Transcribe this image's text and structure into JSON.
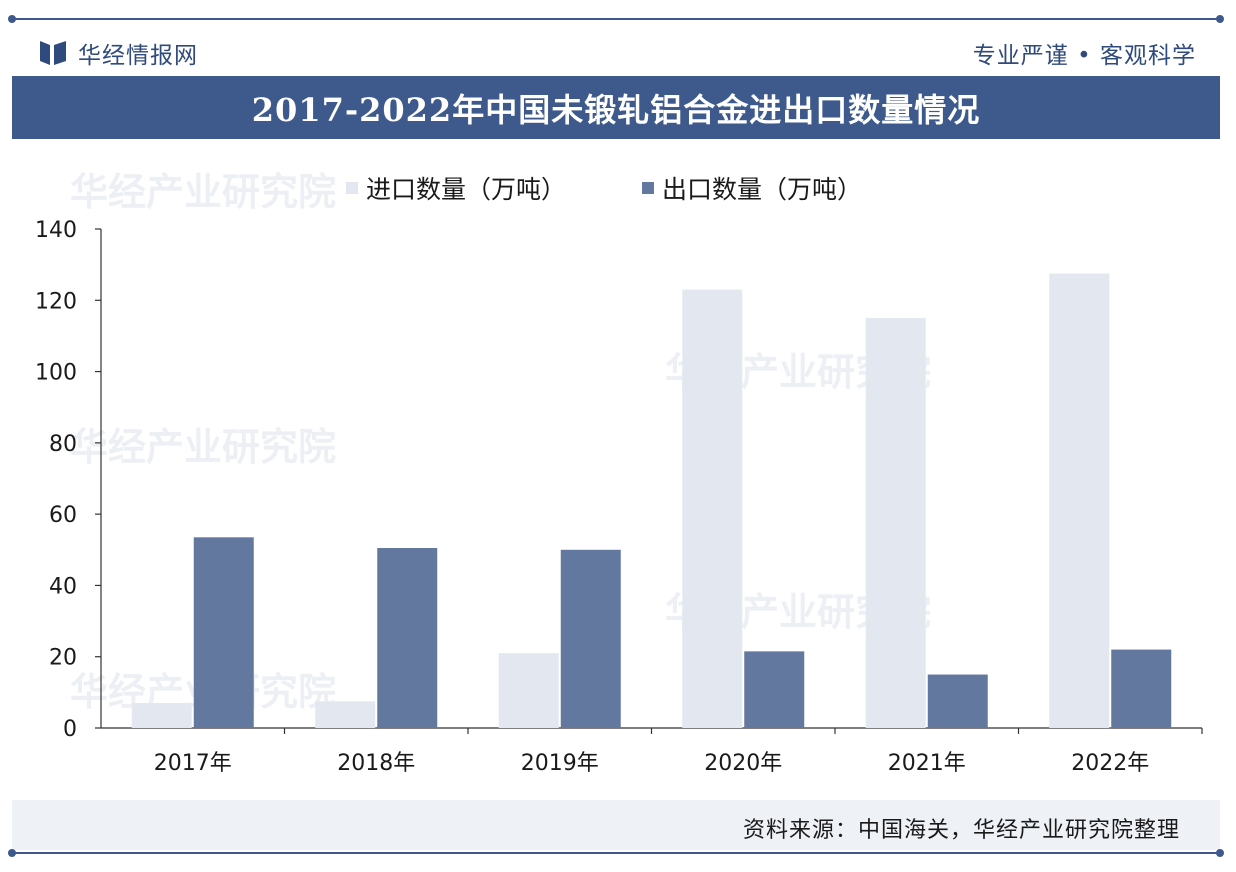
{
  "header": {
    "brand": "华经情报网",
    "motto": "专业严谨 • 客观科学"
  },
  "title": "2017-2022年中国未锻轧铝合金进出口数量情况",
  "footer": {
    "source": "资料来源：中国海关，华经产业研究院整理"
  },
  "watermark": {
    "text": "华经产业研究院"
  },
  "colors": {
    "accent": "#3e5a8c",
    "import_bar": "#e3e8f0",
    "export_bar": "#62789f"
  },
  "chart_data": {
    "type": "bar",
    "categories": [
      "2017年",
      "2018年",
      "2019年",
      "2020年",
      "2021年",
      "2022年"
    ],
    "series": [
      {
        "name": "进口数量（万吨）",
        "values": [
          7,
          7.5,
          21,
          123,
          115,
          127.5
        ]
      },
      {
        "name": "出口数量（万吨）",
        "values": [
          53.5,
          50.5,
          50,
          21.5,
          15,
          22
        ]
      }
    ],
    "ylim": [
      0,
      140
    ],
    "yticks": [
      "0",
      "20",
      "40",
      "60",
      "80",
      "100",
      "120",
      "140"
    ],
    "legend": "top-center",
    "grid": false
  }
}
